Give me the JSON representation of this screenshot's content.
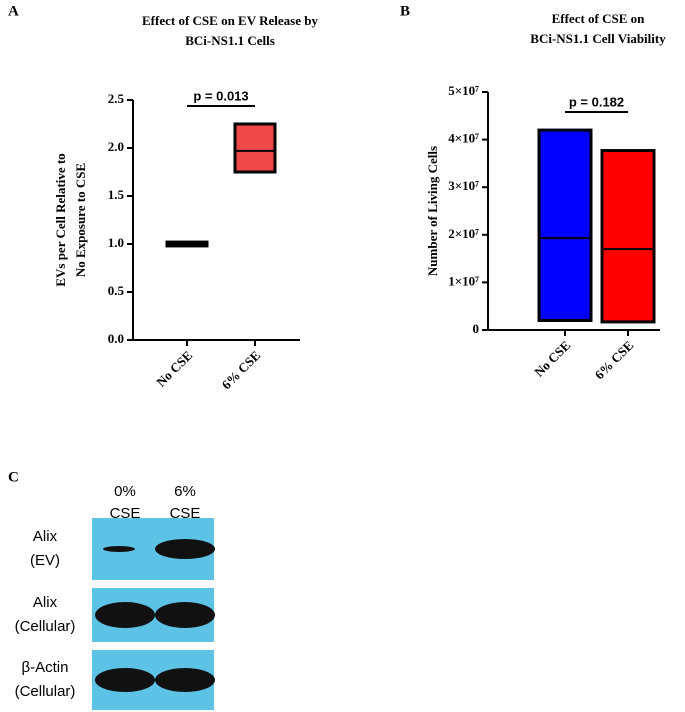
{
  "chart_data": [
    {
      "type": "box",
      "panel_label": "A",
      "title": [
        "Effect of CSE on EV Release by",
        "BCi-NS1.1 Cells"
      ],
      "ylabel": [
        "EVs per Cell Relative to",
        "No Exposure to CSE"
      ],
      "annotation": "p = 0.013",
      "categories": [
        "No CSE",
        "6% CSE"
      ],
      "low": [
        0.98,
        1.75
      ],
      "high": [
        1.02,
        2.25
      ],
      "median": [
        1.0,
        1.97
      ],
      "colors": [
        "#000000",
        "#f04848"
      ],
      "ylim": [
        0,
        2.5
      ],
      "yticks": [
        {
          "value": 0,
          "label": "0.0"
        },
        0.5,
        {
          "value": 1,
          "label": "1.0"
        },
        1.5,
        {
          "value": 2,
          "label": "2.0"
        },
        2.5
      ]
    },
    {
      "type": "box",
      "panel_label": "B",
      "title": [
        "Effect of CSE on",
        "BCi-NS1.1 Cell Viability"
      ],
      "ylabel": [
        "Number of Living Cells"
      ],
      "annotation": "p = 0.182",
      "categories": [
        "No CSE",
        "6% CSE"
      ],
      "low": [
        2000000,
        1700000
      ],
      "high": [
        42000000,
        37700000
      ],
      "median": [
        19300000,
        17000000
      ],
      "colors": [
        "#0000ff",
        "#ff0000"
      ],
      "ylim": [
        0,
        50000000
      ],
      "yticks": [
        0,
        {
          "value": 10000000,
          "label": "1×10⁷"
        },
        {
          "value": 20000000,
          "label": "2×10⁷"
        },
        {
          "value": 30000000,
          "label": "3×10⁷"
        },
        {
          "value": 40000000,
          "label": "4×10⁷"
        },
        {
          "value": 50000000,
          "label": "5×10⁷"
        }
      ]
    }
  ],
  "blot": {
    "panel_label": "C",
    "lanes": [
      [
        "0%",
        "CSE"
      ],
      [
        "6%",
        "CSE"
      ]
    ],
    "rows": [
      [
        "Alix",
        "(EV)"
      ],
      [
        "Alix",
        "(Cellular)"
      ],
      [
        "β-Actin",
        "(Cellular)"
      ]
    ]
  }
}
